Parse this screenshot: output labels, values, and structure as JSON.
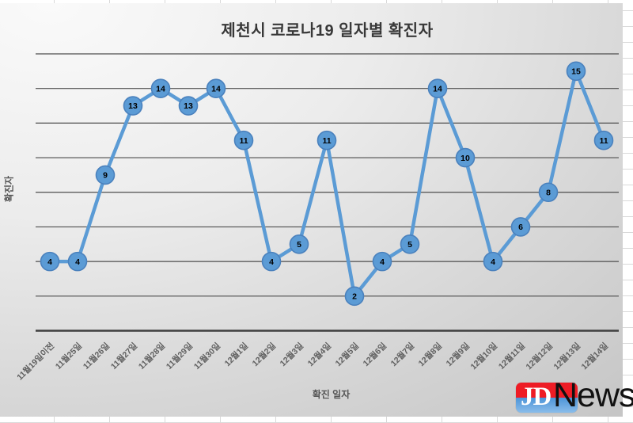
{
  "chart_data": {
    "type": "line",
    "title": "제천시 코로나19 일자별 확진자",
    "xlabel": "확진 일자",
    "ylabel": "확진자",
    "categories": [
      "11월19일이전",
      "11월25일",
      "11월26일",
      "11월27일",
      "11월28일",
      "11월29일",
      "11월30일",
      "12월1일",
      "12월2일",
      "12월3일",
      "12월4일",
      "12월5일",
      "12월6일",
      "12월7일",
      "12월8일",
      "12월9일",
      "12월10일",
      "12월11일",
      "12월12일",
      "12월13일",
      "12월14일"
    ],
    "values": [
      4,
      4,
      9,
      13,
      14,
      13,
      14,
      11,
      4,
      5,
      11,
      2,
      4,
      5,
      14,
      10,
      4,
      6,
      8,
      15,
      11
    ],
    "ylim": [
      0,
      16
    ],
    "grid_step": 2,
    "grid": true,
    "legend_position": "none",
    "data_labels": true,
    "colors": {
      "series": "#5B9BD5",
      "marker_border": "#4A81BD",
      "data_label": "#000000",
      "gridline": "#4d4d4d",
      "axis_line": "#3f3f3f",
      "tick_label": "#5f5f5f"
    }
  },
  "watermark": {
    "jd": "JD",
    "news": "News",
    "red": "#EE1C25",
    "blue": "#4D94D8"
  }
}
